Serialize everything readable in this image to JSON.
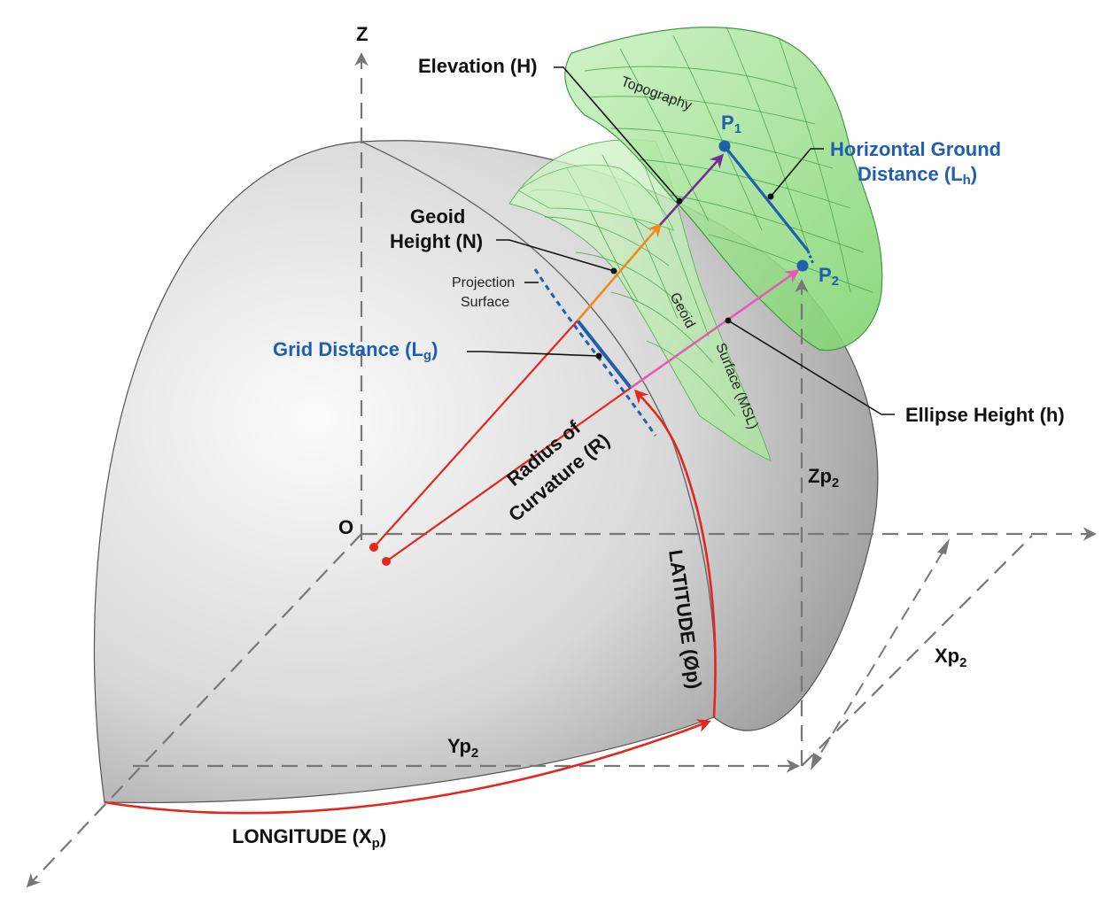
{
  "colors": {
    "red": "#e4261c",
    "blue": "#1f5fae",
    "orange": "#f08a1c",
    "purple": "#7a2a96",
    "pink": "#e45cb8",
    "green_fill": "#9fe08f",
    "green_line": "#3f9a3f",
    "axis_gray": "#777777",
    "sphere_light": "#f7f7f7",
    "sphere_dark": "#8a8a8a"
  },
  "icons": {
    "axis_arrowhead": "arrow-head-icon",
    "point_marker": "dot-icon"
  },
  "labels": {
    "z_axis": "Z",
    "origin": "O",
    "elevation": "Elevation (H)",
    "topography": "Topography",
    "p1_base": "P",
    "p1_sub": "1",
    "p2_base": "P",
    "p2_sub": "2",
    "hgd_line1": "Horizontal Ground",
    "hgd_line2_base": "Distance (L",
    "hgd_line2_sub": "h",
    "hgd_line2_end": ")",
    "geoid_height_line1": "Geoid",
    "geoid_height_line2": "Height (N)",
    "projection_line1": "Projection",
    "projection_line2": "Surface",
    "grid_base": "Grid Distance (L",
    "grid_sub": "g",
    "grid_end": ")",
    "geoid_word": "Geoid",
    "surface_msl": "Surface (MSL)",
    "ellipse_height": "Ellipse Height (h)",
    "radius_line1": "Radius of",
    "radius_line2": "Curvature (R)",
    "zp2_base": "Zp",
    "zp2_sub": "2",
    "latitude": "LATITUDE (Øp)",
    "xp2_base": "Xp",
    "xp2_sub": "2",
    "yp2_base": "Yp",
    "yp2_sub": "2",
    "longitude_base": "LONGITUDE (X",
    "longitude_sub": "p",
    "longitude_end": ")"
  }
}
